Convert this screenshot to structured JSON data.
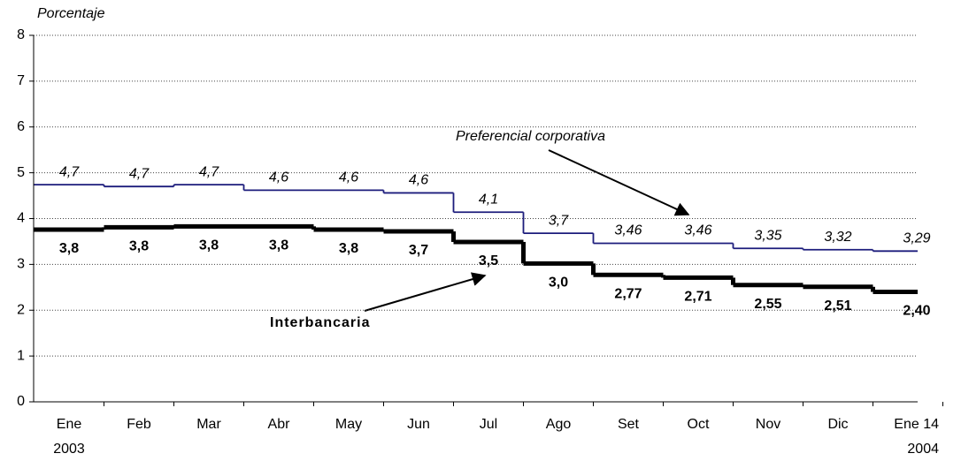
{
  "chart_data": {
    "type": "step-line",
    "y_axis_label": "Porcentaje",
    "categories": [
      "Ene\n2003",
      "Feb",
      "Mar",
      "Abr",
      "May",
      "Jun",
      "Jul",
      "Ago",
      "Set",
      "Oct",
      "Nov",
      "Dic",
      "Ene 14\n2004"
    ],
    "series": [
      {
        "name": "Preferencial corporativa",
        "color": "#1c1c7c",
        "style": "italic",
        "values": [
          4.74,
          4.7,
          4.74,
          4.62,
          4.62,
          4.56,
          4.14,
          3.68,
          3.46,
          3.46,
          3.35,
          3.32,
          3.29
        ],
        "value_labels": [
          "4,7",
          "4,7",
          "4,7",
          "4,6",
          "4,6",
          "4,6",
          "4,1",
          "3,7",
          "3,46",
          "3,46",
          "3,35",
          "3,32",
          "3,29"
        ]
      },
      {
        "name": "Interbancaria",
        "color": "#000000",
        "style": "bold",
        "values": [
          3.76,
          3.81,
          3.83,
          3.83,
          3.76,
          3.72,
          3.49,
          3.02,
          2.77,
          2.71,
          2.55,
          2.51,
          2.4
        ],
        "value_labels": [
          "3,8",
          "3,8",
          "3,8",
          "3,8",
          "3,8",
          "3,7",
          "3,5",
          "3,0",
          "2,77",
          "2,71",
          "2,55",
          "2,51",
          "2,40"
        ]
      }
    ],
    "ylim": [
      0,
      8
    ],
    "yticks": [
      0,
      1,
      2,
      3,
      4,
      5,
      6,
      7,
      8
    ],
    "grid": true
  }
}
